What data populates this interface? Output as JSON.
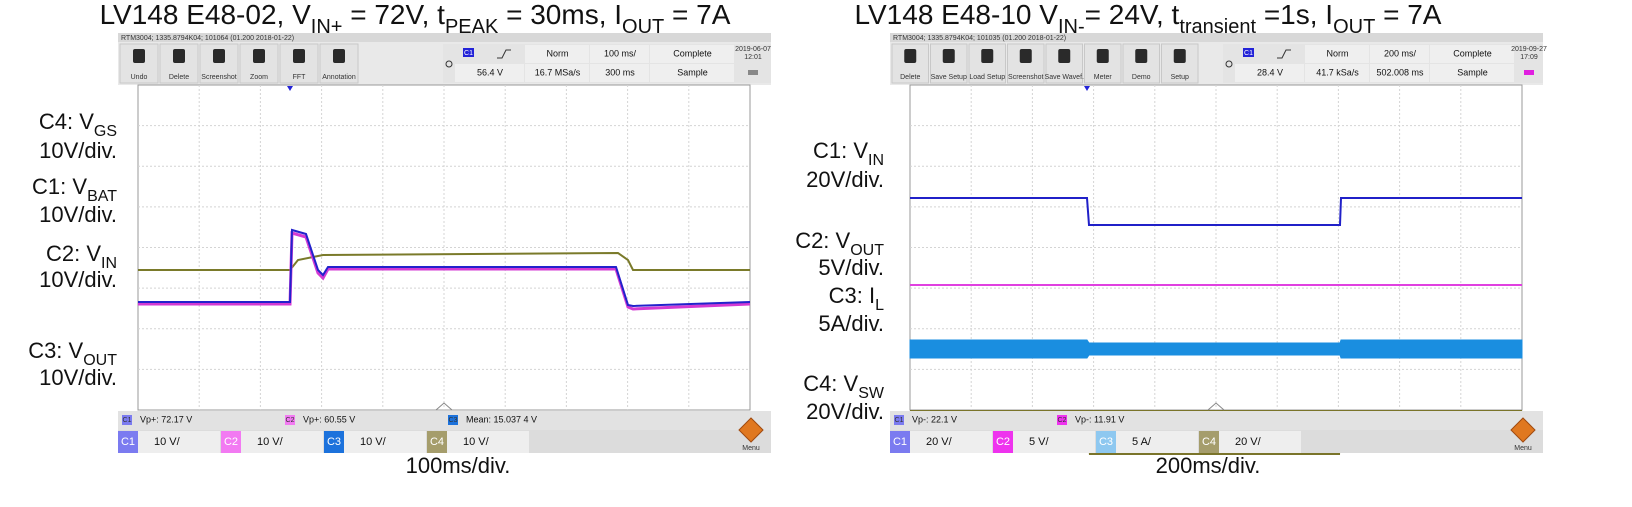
{
  "panels": [
    {
      "title": [
        "LV148 E48-02, V",
        "IN+",
        " = 72V, t",
        "PEAK",
        " = 30ms, I",
        "OUT",
        " = 7A"
      ],
      "info": "RTM3004; 1335.8794K04; 101064 (01.200 2018-01-22)",
      "buttons": [
        "Undo",
        "Delete",
        "Screenshot",
        "Zoom",
        "FFT",
        "Annotation"
      ],
      "settings_top": [
        "C1",
        "Norm",
        "100 ms/",
        "Complete"
      ],
      "settings_bottom": [
        "56.4 V",
        "16.7 MSa/s",
        "300 ms",
        "Sample"
      ],
      "date": "2019-06-07",
      "time": "12:01",
      "side_labels": [
        {
          "name": [
            "C4: V",
            "GS"
          ],
          "scale": "10V/div."
        },
        {
          "name": [
            "C1: V",
            "BAT"
          ],
          "scale": "10V/div."
        },
        {
          "name": [
            "C2: V",
            "IN"
          ],
          "scale": "10V/div."
        },
        {
          "name": [
            "C3: V",
            "OUT"
          ],
          "scale": "10V/div."
        }
      ],
      "measurements": [
        {
          "channel": "C1",
          "text": "Vp+: 72.17 V"
        },
        {
          "channel": "C2",
          "text": "Vp+: 60.55 V"
        },
        {
          "channel": "C3",
          "text": "Mean: 15.037 4 V"
        }
      ],
      "channels": [
        {
          "name": "C1",
          "scale": "10 V/"
        },
        {
          "name": "C2",
          "scale": "10 V/"
        },
        {
          "name": "C3",
          "scale": "10 V/"
        },
        {
          "name": "C4",
          "scale": "10 V/"
        }
      ],
      "menu": "Menu",
      "timebase": "100ms/div."
    },
    {
      "title": [
        "LV148 E48-10 V",
        "IN-",
        "= 24V, t",
        "transient",
        " =1s, I",
        "OUT",
        " = 7A"
      ],
      "info": "RTM3004; 1335.8794K04; 101035 (01.200 2018-01-22)",
      "buttons": [
        "Delete",
        "Save Setup",
        "Load Setup",
        "Screenshot",
        "Save Wavef.",
        "Meter",
        "Demo",
        "Setup"
      ],
      "settings_top": [
        "C1",
        "Norm",
        "200 ms/",
        "Complete"
      ],
      "settings_bottom": [
        "28.4 V",
        "41.7 kSa/s",
        "502.008 ms",
        "Sample"
      ],
      "date": "2019-09-27",
      "time": "17:09",
      "side_labels": [
        {
          "name": [
            "C1: V",
            "IN"
          ],
          "scale": "20V/div."
        },
        {
          "name": [
            "C2: V",
            "OUT"
          ],
          "scale": "5V/div."
        },
        {
          "name": [
            "C3: I",
            "L"
          ],
          "scale": "5A/div."
        },
        {
          "name": [
            "C4: V",
            "SW"
          ],
          "scale": "20V/div."
        }
      ],
      "measurements": [
        {
          "channel": "C1",
          "text": "Vp-: 22.1 V"
        },
        {
          "channel": "C2",
          "text": "Vp-: 11.91 V"
        }
      ],
      "channels": [
        {
          "name": "C1",
          "scale": "20 V/"
        },
        {
          "name": "C2",
          "scale": "5 V/"
        },
        {
          "name": "C3",
          "scale": "5 A/"
        },
        {
          "name": "C4",
          "scale": "20 V/"
        }
      ],
      "menu": "Menu",
      "timebase": "200ms/div."
    }
  ]
}
